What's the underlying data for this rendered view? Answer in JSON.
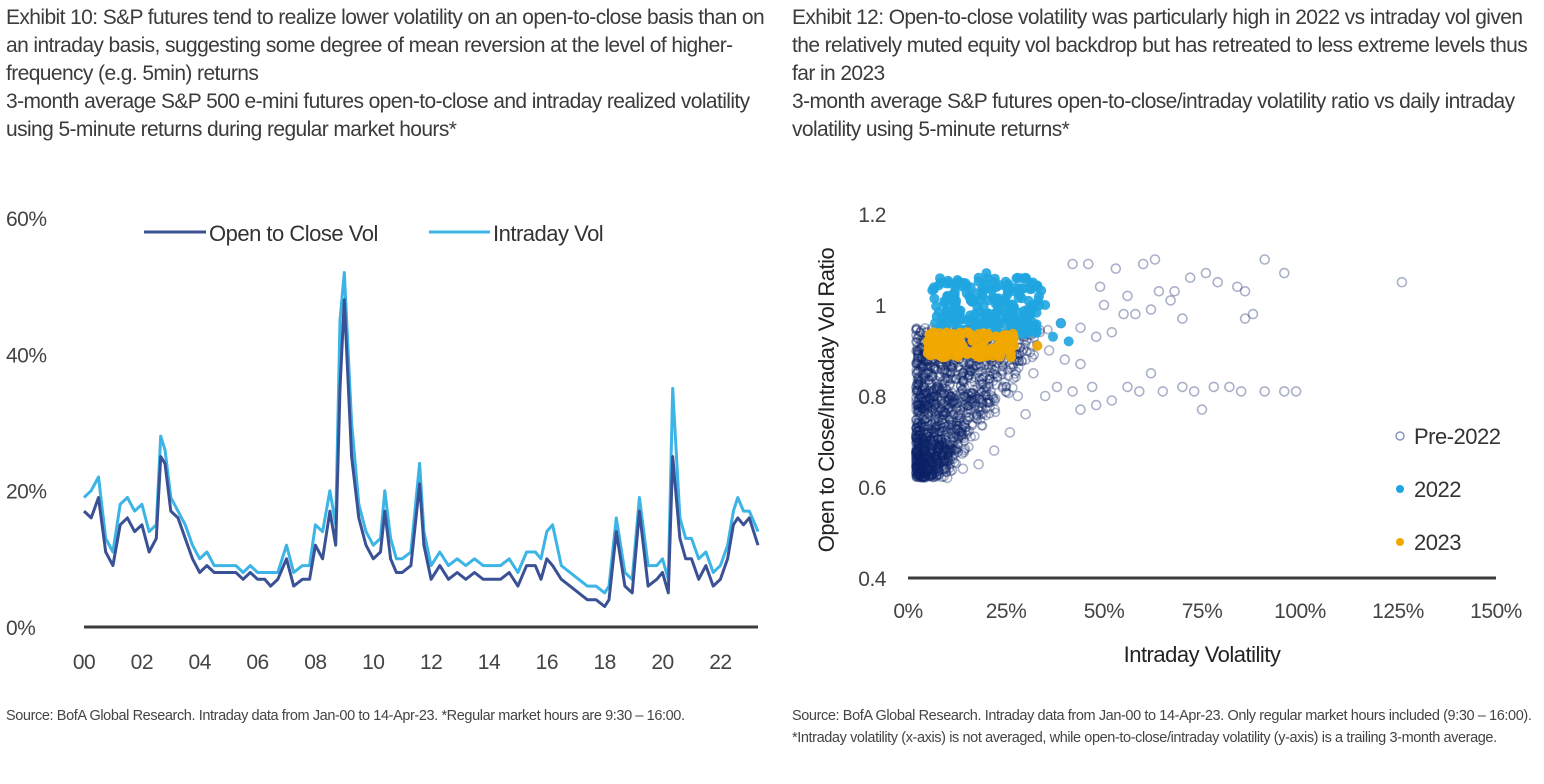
{
  "colors": {
    "open_to_close": "#3a5195",
    "intraday": "#3cb4e6",
    "pre2022": "#0b2267",
    "y2022": "#1fa5e0",
    "y2023": "#f0a800",
    "axis": "#3c3c3c"
  },
  "left": {
    "title": "Exhibit 10: S&P futures tend to realize lower volatility on an open-to-close basis than on an intraday basis, suggesting some degree of mean reversion at the level of higher-frequency (e.g. 5min) returns",
    "subtitle": "3-month average S&P 500 e-mini futures open-to-close and intraday realized volatility using 5-minute returns during regular market hours*",
    "source": "Source: BofA Global Research. Intraday data from Jan-00 to 14-Apr-23. *Regular market hours are 9:30 – 16:00."
  },
  "right": {
    "title": "Exhibit 12: Open-to-close volatility was particularly high in 2022 vs intraday vol given the relatively muted equity vol backdrop but has retreated to less extreme levels thus far in 2023",
    "subtitle": "3-month average S&P futures open-to-close/intraday volatility ratio vs daily intraday volatility using 5-minute returns*",
    "source": "Source: BofA Global Research. Intraday data from Jan-00 to 14-Apr-23. Only regular market hours included (9:30 – 16:00). *Intraday volatility (x-axis) is not averaged, while open-to-close/intraday volatility (y-axis) is a trailing 3-month average."
  },
  "chart_data": [
    {
      "type": "line",
      "title": "3-month average S&P 500 e-mini futures open-to-close and intraday realized volatility",
      "xlabel": "",
      "ylabel": "",
      "x_ticks": [
        "00",
        "02",
        "04",
        "06",
        "08",
        "10",
        "12",
        "14",
        "16",
        "18",
        "20",
        "22"
      ],
      "x_range": [
        2000.0,
        2023.3
      ],
      "y_ticks": [
        "0%",
        "20%",
        "40%",
        "60%"
      ],
      "y_tick_values": [
        0,
        20,
        40,
        60
      ],
      "ylim": [
        0,
        60
      ],
      "grid": false,
      "legend_position": "top-center",
      "x": [
        2000.0,
        2000.25,
        2000.5,
        2000.75,
        2001.0,
        2001.25,
        2001.5,
        2001.75,
        2002.0,
        2002.25,
        2002.5,
        2002.65,
        2002.8,
        2003.0,
        2003.25,
        2003.5,
        2003.75,
        2004.0,
        2004.25,
        2004.5,
        2004.75,
        2005.0,
        2005.25,
        2005.5,
        2005.75,
        2006.0,
        2006.25,
        2006.45,
        2006.7,
        2007.0,
        2007.25,
        2007.55,
        2007.8,
        2008.0,
        2008.25,
        2008.5,
        2008.7,
        2008.85,
        2009.0,
        2009.25,
        2009.5,
        2009.75,
        2010.0,
        2010.25,
        2010.4,
        2010.6,
        2010.8,
        2011.0,
        2011.3,
        2011.6,
        2011.75,
        2012.0,
        2012.3,
        2012.6,
        2012.9,
        2013.2,
        2013.5,
        2013.8,
        2014.1,
        2014.4,
        2014.7,
        2015.0,
        2015.3,
        2015.6,
        2015.8,
        2016.0,
        2016.2,
        2016.5,
        2016.8,
        2017.1,
        2017.4,
        2017.7,
        2018.0,
        2018.15,
        2018.4,
        2018.7,
        2018.95,
        2019.2,
        2019.5,
        2019.8,
        2020.0,
        2020.2,
        2020.35,
        2020.6,
        2020.8,
        2021.0,
        2021.25,
        2021.5,
        2021.75,
        2022.0,
        2022.25,
        2022.45,
        2022.6,
        2022.8,
        2023.0,
        2023.3
      ],
      "series": [
        {
          "name": "Open to Close Vol",
          "values": [
            17,
            16,
            19,
            11,
            9,
            15,
            16,
            14,
            15,
            11,
            13,
            25,
            24,
            17,
            16,
            13,
            10,
            8,
            9,
            8,
            8,
            8,
            8,
            7,
            8,
            7,
            7,
            6,
            7,
            10,
            6,
            7,
            7,
            12,
            10,
            17,
            12,
            35,
            48,
            25,
            16,
            12,
            10,
            11,
            17,
            10,
            8,
            8,
            9,
            21,
            12,
            7,
            9,
            7,
            8,
            7,
            8,
            7,
            7,
            7,
            8,
            6,
            9,
            9,
            7,
            10,
            9,
            7,
            6,
            5,
            4,
            4,
            3,
            4,
            14,
            6,
            5,
            17,
            6,
            7,
            8,
            5,
            25,
            13,
            10,
            10,
            7,
            9,
            6,
            7,
            10,
            15,
            16,
            15,
            16,
            12
          ]
        },
        {
          "name": "Intraday Vol",
          "values": [
            19,
            20,
            22,
            13,
            11,
            18,
            19,
            17,
            18,
            14,
            15,
            28,
            26,
            19,
            17,
            15,
            12,
            10,
            11,
            9,
            9,
            9,
            9,
            8,
            9,
            8,
            8,
            8,
            8,
            12,
            8,
            9,
            9,
            15,
            14,
            20,
            15,
            45,
            52,
            30,
            18,
            14,
            12,
            13,
            20,
            13,
            10,
            10,
            11,
            24,
            14,
            9,
            11,
            9,
            10,
            9,
            10,
            9,
            9,
            9,
            10,
            8,
            11,
            11,
            10,
            14,
            15,
            9,
            8,
            7,
            6,
            6,
            5,
            6,
            16,
            8,
            7,
            19,
            9,
            9,
            10,
            7,
            35,
            16,
            13,
            13,
            10,
            11,
            8,
            9,
            12,
            17,
            19,
            17,
            17,
            14
          ]
        }
      ]
    },
    {
      "type": "scatter",
      "title": "3-month average S&P futures open-to-close/intraday volatility ratio vs daily intraday volatility",
      "xlabel": "Intraday Volatility",
      "ylabel": "Open to Close/Intraday Vol Ratio",
      "x_ticks": [
        "0%",
        "25%",
        "50%",
        "75%",
        "100%",
        "125%",
        "150%"
      ],
      "x_tick_values": [
        0,
        25,
        50,
        75,
        100,
        125,
        150
      ],
      "xlim": [
        0,
        150
      ],
      "y_ticks": [
        "0.4",
        "0.6",
        "0.8",
        "1",
        "1.2"
      ],
      "y_tick_values": [
        0.4,
        0.6,
        0.8,
        1.0,
        1.2
      ],
      "ylim": [
        0.4,
        1.2
      ],
      "grid": false,
      "legend_position": "right",
      "series": [
        {
          "name": "Pre-2022",
          "marker": "hollow-circle",
          "description": "Dense cluster roughly x 2–35%, y 0.62–0.95, with a sparse tail out to x≈126%",
          "points": [
            [
              42,
              1.09
            ],
            [
              46,
              1.09
            ],
            [
              53,
              1.08
            ],
            [
              60,
              1.09
            ],
            [
              63,
              1.1
            ],
            [
              91,
              1.1
            ],
            [
              96,
              1.07
            ],
            [
              126,
              1.05
            ],
            [
              49,
              1.04
            ],
            [
              56,
              1.02
            ],
            [
              64,
              1.03
            ],
            [
              68,
              1.03
            ],
            [
              72,
              1.06
            ],
            [
              76,
              1.07
            ],
            [
              79,
              1.05
            ],
            [
              84,
              1.04
            ],
            [
              86,
              1.03
            ],
            [
              50,
              1.0
            ],
            [
              55,
              0.98
            ],
            [
              58,
              0.98
            ],
            [
              62,
              0.99
            ],
            [
              67,
              1.01
            ],
            [
              70,
              0.97
            ],
            [
              86,
              0.97
            ],
            [
              88,
              0.98
            ],
            [
              39,
              0.96
            ],
            [
              44,
              0.95
            ],
            [
              48,
              0.93
            ],
            [
              52,
              0.94
            ],
            [
              36,
              0.9
            ],
            [
              40,
              0.88
            ],
            [
              44,
              0.87
            ],
            [
              38,
              0.82
            ],
            [
              42,
              0.81
            ],
            [
              47,
              0.82
            ],
            [
              52,
              0.79
            ],
            [
              56,
              0.82
            ],
            [
              59,
              0.81
            ],
            [
              62,
              0.85
            ],
            [
              65,
              0.81
            ],
            [
              70,
              0.82
            ],
            [
              73,
              0.81
            ],
            [
              78,
              0.82
            ],
            [
              82,
              0.82
            ],
            [
              85,
              0.81
            ],
            [
              91,
              0.81
            ],
            [
              96,
              0.81
            ],
            [
              99,
              0.81
            ],
            [
              75,
              0.77
            ],
            [
              44,
              0.77
            ],
            [
              48,
              0.78
            ],
            [
              30,
              0.88
            ],
            [
              32,
              0.85
            ],
            [
              28,
              0.8
            ],
            [
              35,
              0.8
            ],
            [
              30,
              0.76
            ],
            [
              26,
              0.72
            ],
            [
              22,
              0.68
            ],
            [
              18,
              0.65
            ],
            [
              14,
              0.64
            ],
            [
              10,
              0.62
            ],
            [
              6,
              0.63
            ],
            [
              3,
              0.73
            ]
          ]
        },
        {
          "name": "2022",
          "marker": "filled-circle",
          "description": "Cluster roughly x 5–40%, y 0.92–1.08",
          "points": [
            [
              10,
              1.02
            ],
            [
              14,
              1.04
            ],
            [
              18,
              1.06
            ],
            [
              20,
              1.07
            ],
            [
              22,
              1.05
            ],
            [
              25,
              1.04
            ],
            [
              28,
              1.06
            ],
            [
              30,
              1.06
            ],
            [
              33,
              1.04
            ],
            [
              12,
              1.0
            ],
            [
              16,
              1.01
            ],
            [
              19,
              1.02
            ],
            [
              23,
              1.01
            ],
            [
              26,
              1.0
            ],
            [
              30,
              0.98
            ],
            [
              35,
              1.0
            ],
            [
              39,
              0.96
            ],
            [
              8,
              0.95
            ],
            [
              13,
              0.97
            ],
            [
              17,
              0.98
            ],
            [
              21,
              0.97
            ],
            [
              24,
              0.96
            ],
            [
              27,
              0.95
            ],
            [
              31,
              0.94
            ],
            [
              37,
              0.93
            ],
            [
              41,
              0.92
            ],
            [
              6,
              0.93
            ]
          ]
        },
        {
          "name": "2023",
          "marker": "filled-circle",
          "description": "Cluster roughly x 5–28%, y 0.88–0.94",
          "points": [
            [
              5,
              0.92
            ],
            [
              7,
              0.91
            ],
            [
              9,
              0.93
            ],
            [
              11,
              0.9
            ],
            [
              12,
              0.92
            ],
            [
              14,
              0.91
            ],
            [
              15,
              0.94
            ],
            [
              17,
              0.9
            ],
            [
              19,
              0.91
            ],
            [
              21,
              0.9
            ],
            [
              23,
              0.91
            ],
            [
              25,
              0.92
            ],
            [
              27,
              0.91
            ],
            [
              8,
              0.89
            ],
            [
              13,
              0.89
            ],
            [
              33,
              0.91
            ]
          ]
        }
      ]
    }
  ]
}
